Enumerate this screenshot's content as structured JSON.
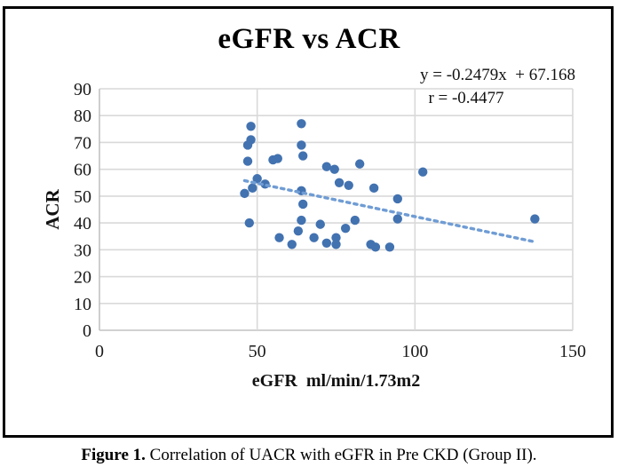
{
  "figure": {
    "title": "eGFR vs ACR",
    "annotation_equation": "y = -0.2479x  + 67.168",
    "annotation_r": "r = -0.4477",
    "caption_prefix": "Figure 1.",
    "caption_body": " Correlation of UACR with eGFR in Pre CKD (Group II)."
  },
  "chart_data": {
    "type": "scatter",
    "title": "eGFR vs ACR",
    "xlabel": "eGFR  ml/min/1.73m2",
    "ylabel": "ACR",
    "xlim": [
      0,
      150
    ],
    "ylim": [
      0,
      90
    ],
    "xticks": [
      0,
      50,
      100,
      150
    ],
    "yticks": [
      0,
      10,
      20,
      30,
      40,
      50,
      60,
      70,
      80,
      90
    ],
    "grid": true,
    "legend": "none",
    "points": [
      [
        48,
        76
      ],
      [
        48,
        71
      ],
      [
        47,
        69
      ],
      [
        47,
        63
      ],
      [
        55,
        63.5
      ],
      [
        56.5,
        64
      ],
      [
        50,
        56.5
      ],
      [
        52.5,
        54.5
      ],
      [
        48.5,
        53
      ],
      [
        46,
        51
      ],
      [
        47.5,
        40
      ],
      [
        57,
        34.5
      ],
      [
        61,
        32
      ],
      [
        63,
        37
      ],
      [
        64,
        41
      ],
      [
        64,
        52
      ],
      [
        64.5,
        47
      ],
      [
        64,
        77
      ],
      [
        64,
        69
      ],
      [
        64.5,
        65
      ],
      [
        68,
        34.5
      ],
      [
        70,
        39.5
      ],
      [
        72,
        32.5
      ],
      [
        72,
        61
      ],
      [
        74.5,
        60
      ],
      [
        75,
        34.5
      ],
      [
        75,
        32
      ],
      [
        76,
        55
      ],
      [
        79,
        54
      ],
      [
        78,
        38
      ],
      [
        81,
        41
      ],
      [
        82.5,
        62
      ],
      [
        86,
        32
      ],
      [
        87.5,
        31
      ],
      [
        87,
        53
      ],
      [
        92,
        31
      ],
      [
        94.5,
        49
      ],
      [
        94.5,
        41.5
      ],
      [
        102.5,
        59
      ],
      [
        138,
        41.5
      ]
    ],
    "trendline": {
      "style": "dotted",
      "slope": -0.2479,
      "intercept": 67.168,
      "x_start": 46,
      "x_end": 138.5,
      "equation_label": "y = -0.2479x  + 67.168",
      "r_label": "r = -0.4477"
    },
    "colors": {
      "point": "#4272b0",
      "trendline": "#6f9cd4",
      "gridline": "#d9d9d9",
      "axis_line": "#c2c2c2",
      "text": "#1a1a1a"
    }
  }
}
